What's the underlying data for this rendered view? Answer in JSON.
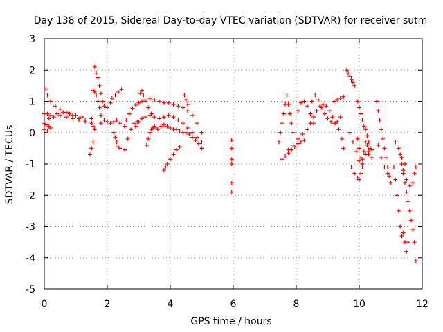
{
  "chart_data": {
    "type": "scatter",
    "title": "Day 138 of 2015, Sidereal Day-to-day VTEC variation (SDTVAR) for receiver sutm",
    "xlabel": "GPS time / hours",
    "ylabel": "SDTVAR / TECUs",
    "xlim": [
      0,
      12
    ],
    "ylim": [
      -5,
      3
    ],
    "xticks": [
      0,
      2,
      4,
      6,
      8,
      10,
      12
    ],
    "xtick_labels": [
      "0",
      "2",
      "4",
      "6",
      "8",
      "10",
      "12"
    ],
    "yticks": [
      -5,
      -4,
      -3,
      -2,
      -1,
      0,
      1,
      2,
      3
    ],
    "ytick_labels": [
      "-5",
      "-4",
      "-3",
      "-2",
      "-1",
      "0",
      "1",
      "2",
      "3"
    ],
    "grid": true,
    "marker": "+",
    "colors": {
      "series": "#ff0000",
      "grid": "#a0a0a0",
      "axes": "#000000"
    },
    "series": [
      {
        "name": "t1",
        "x": [
          0.0,
          0.15,
          0.3,
          0.5,
          0.7,
          0.9,
          1.1,
          1.3,
          1.5,
          1.55
        ],
        "y": [
          0.3,
          0.45,
          0.5,
          0.55,
          0.5,
          0.45,
          0.4,
          0.35,
          0.3,
          0.2
        ]
      },
      {
        "name": "t2",
        "x": [
          0.0,
          0.1,
          0.2,
          0.4,
          0.6,
          0.8,
          1.0,
          1.2
        ],
        "y": [
          0.6,
          0.6,
          0.55,
          0.6,
          0.65,
          0.6,
          0.55,
          0.5
        ]
      },
      {
        "name": "t3",
        "x": [
          0.05,
          0.1,
          0.2,
          0.35,
          0.5,
          0.7,
          0.9,
          1.1,
          1.3,
          1.5
        ],
        "y": [
          1.4,
          1.2,
          1.0,
          0.85,
          0.75,
          0.65,
          0.55,
          0.45,
          0.4,
          0.45
        ]
      },
      {
        "name": "t4",
        "x": [
          0.0,
          0.05,
          0.1,
          0.15,
          0.2
        ],
        "y": [
          0.1,
          0.25,
          0.05,
          0.2,
          0.15
        ]
      },
      {
        "name": "t5",
        "x": [
          1.45,
          1.5,
          1.55,
          1.6
        ],
        "y": [
          -0.7,
          -0.5,
          -0.3,
          0.1
        ]
      },
      {
        "name": "t6",
        "x": [
          1.6,
          1.65,
          1.7,
          1.75,
          1.8,
          1.85,
          1.9,
          2.0,
          2.1
        ],
        "y": [
          2.1,
          1.9,
          1.75,
          1.5,
          1.25,
          1.0,
          0.85,
          0.8,
          0.95
        ]
      },
      {
        "name": "t7",
        "x": [
          1.55,
          1.6,
          1.65,
          1.7,
          1.75,
          1.8
        ],
        "y": [
          1.35,
          1.3,
          1.2,
          1.0,
          0.8,
          0.55
        ]
      },
      {
        "name": "t8",
        "x": [
          1.8,
          1.9,
          2.0,
          2.1,
          2.2,
          2.3,
          2.4
        ],
        "y": [
          0.3,
          0.4,
          0.35,
          0.3,
          0.35,
          0.4,
          0.3
        ]
      },
      {
        "name": "t9",
        "x": [
          2.15,
          2.25,
          2.35,
          2.45
        ],
        "y": [
          1.1,
          1.2,
          1.3,
          1.38
        ]
      },
      {
        "name": "t10",
        "x": [
          2.2,
          2.25,
          2.3,
          2.35,
          2.4
        ],
        "y": [
          0.0,
          -0.15,
          -0.3,
          -0.45,
          -0.5
        ]
      },
      {
        "name": "t11",
        "x": [
          2.55,
          2.65,
          2.75,
          2.85,
          2.95
        ],
        "y": [
          -0.55,
          -0.2,
          0.1,
          0.3,
          0.35
        ]
      },
      {
        "name": "t12",
        "x": [
          2.55,
          2.6,
          2.7,
          2.8,
          2.9,
          3.0,
          3.1,
          3.2,
          3.35,
          3.5,
          3.65,
          3.8,
          3.95,
          4.1,
          4.25,
          4.4,
          4.55,
          4.7,
          4.85,
          5.0
        ],
        "y": [
          0.2,
          0.4,
          0.6,
          0.78,
          0.88,
          0.95,
          1.0,
          1.05,
          1.1,
          1.05,
          1.0,
          0.95,
          0.95,
          0.9,
          0.85,
          0.8,
          0.7,
          0.55,
          0.3,
          0.0
        ]
      },
      {
        "name": "t13",
        "x": [
          2.9,
          3.0,
          3.1,
          3.2,
          3.35,
          3.5,
          3.65,
          3.8,
          3.95,
          4.1,
          4.25,
          4.4,
          4.55,
          4.7,
          4.85,
          5.0
        ],
        "y": [
          0.2,
          0.35,
          0.45,
          0.5,
          0.55,
          0.5,
          0.45,
          0.5,
          0.55,
          0.5,
          0.4,
          0.3,
          0.15,
          0.0,
          -0.15,
          -0.3
        ]
      },
      {
        "name": "t14",
        "x": [
          3.05,
          3.1,
          3.15,
          3.2,
          3.3,
          3.4
        ],
        "y": [
          1.25,
          1.35,
          1.2,
          1.0,
          0.8,
          0.6
        ]
      },
      {
        "name": "t15",
        "x": [
          3.25,
          3.3,
          3.35,
          3.4,
          3.45,
          3.5,
          3.55,
          3.6,
          3.7,
          3.8,
          3.9,
          4.0,
          4.1,
          4.2,
          4.3,
          4.4,
          4.5,
          4.6,
          4.7,
          4.8,
          4.9,
          5.0
        ],
        "y": [
          -0.4,
          -0.2,
          0.0,
          0.1,
          0.15,
          0.2,
          0.15,
          0.1,
          0.2,
          0.25,
          0.2,
          0.15,
          0.1,
          0.1,
          0.05,
          0.0,
          0.0,
          -0.05,
          -0.15,
          -0.25,
          -0.35,
          -0.5
        ]
      },
      {
        "name": "t16",
        "x": [
          3.8,
          3.85,
          3.9,
          4.0,
          4.1,
          4.2,
          4.3
        ],
        "y": [
          -1.2,
          -1.1,
          -1.0,
          -0.85,
          -0.7,
          -0.55,
          -0.45
        ]
      },
      {
        "name": "t17",
        "x": [
          4.45,
          4.5,
          4.55
        ],
        "y": [
          1.2,
          1.05,
          0.9
        ]
      },
      {
        "name": "t18",
        "x": [
          5.95,
          5.95,
          5.95,
          5.95
        ],
        "y": [
          -0.25,
          -0.5,
          -0.85,
          -1.0
        ]
      },
      {
        "name": "t19",
        "x": [
          5.95,
          5.95
        ],
        "y": [
          -1.6,
          -1.9
        ]
      },
      {
        "name": "t20",
        "x": [
          7.55,
          7.65,
          7.75,
          7.85,
          7.95,
          8.05,
          8.15,
          8.25
        ],
        "y": [
          -0.85,
          -0.75,
          -0.65,
          -0.55,
          -0.45,
          -0.35,
          -0.3,
          -0.25
        ]
      },
      {
        "name": "t21",
        "x": [
          7.45,
          7.5,
          7.55,
          7.6,
          7.65,
          7.7,
          7.75,
          7.8,
          7.85,
          7.9
        ],
        "y": [
          -0.3,
          0.0,
          0.3,
          0.6,
          0.9,
          1.2,
          0.9,
          0.6,
          0.3,
          0.0
        ]
      },
      {
        "name": "t22",
        "x": [
          7.75,
          7.9,
          8.05,
          8.2,
          8.35,
          8.45,
          8.55,
          8.65,
          8.75,
          8.85,
          8.95,
          9.05,
          9.15,
          9.25,
          9.35,
          9.45,
          9.5
        ],
        "y": [
          -0.55,
          -0.4,
          -0.2,
          -0.05,
          0.1,
          0.3,
          0.5,
          0.7,
          0.85,
          0.9,
          0.85,
          0.7,
          0.5,
          0.3,
          0.1,
          -0.2,
          -0.5
        ]
      },
      {
        "name": "t23",
        "x": [
          8.05,
          8.15,
          8.25,
          8.35,
          8.45,
          8.55
        ],
        "y": [
          0.7,
          0.95,
          1.0,
          0.85,
          0.6,
          0.3
        ]
      },
      {
        "name": "t24",
        "x": [
          8.5,
          8.6,
          8.7,
          8.8,
          8.9,
          9.0,
          9.1,
          9.2,
          9.3,
          9.4
        ],
        "y": [
          1.0,
          1.2,
          1.05,
          0.8,
          0.6,
          0.45,
          0.35,
          0.3,
          0.35,
          0.5
        ]
      },
      {
        "name": "t25",
        "x": [
          9.2,
          9.3,
          9.4,
          9.5
        ],
        "y": [
          1.0,
          1.05,
          1.1,
          1.15
        ]
      },
      {
        "name": "t26",
        "x": [
          9.6,
          9.65,
          9.7,
          9.75,
          9.8,
          9.85
        ],
        "y": [
          2.0,
          1.9,
          1.8,
          1.7,
          1.6,
          1.5
        ]
      },
      {
        "name": "t27",
        "x": [
          9.7,
          9.8,
          9.9,
          10.0,
          10.1,
          10.2,
          10.3,
          10.4
        ],
        "y": [
          0.0,
          -0.3,
          -0.6,
          -0.9,
          -0.85,
          -0.7,
          -0.6,
          -0.8
        ]
      },
      {
        "name": "t28",
        "x": [
          9.75,
          9.85,
          9.95,
          10.0,
          10.05,
          10.1
        ],
        "y": [
          -1.1,
          -1.3,
          -1.45,
          -1.5,
          -1.3,
          -1.1
        ]
      },
      {
        "name": "t29",
        "x": [
          9.95,
          10.0,
          10.05,
          10.1,
          10.15,
          10.2,
          10.25,
          10.3,
          10.35,
          10.4
        ],
        "y": [
          1.0,
          0.8,
          0.6,
          0.4,
          0.2,
          0.1,
          -0.1,
          -0.3,
          -0.5,
          -0.55
        ]
      },
      {
        "name": "t30",
        "x": [
          9.95,
          10.0,
          10.05,
          10.1,
          10.15,
          10.2,
          10.25,
          10.3
        ],
        "y": [
          -0.2,
          -0.5,
          -0.8,
          -1.0,
          -0.6,
          -0.3,
          -0.4,
          -0.7
        ]
      },
      {
        "name": "t31",
        "x": [
          10.55,
          10.6,
          10.65,
          10.7,
          10.75,
          10.8,
          10.85,
          10.9,
          10.95
        ],
        "y": [
          1.0,
          0.7,
          0.4,
          0.1,
          -0.2,
          -0.5,
          -0.8,
          -1.1,
          -1.4
        ]
      },
      {
        "name": "t32",
        "x": [
          10.6,
          10.7,
          10.8,
          10.9,
          11.0
        ],
        "y": [
          -0.4,
          -0.8,
          -1.1,
          -1.3,
          -1.6
        ]
      },
      {
        "name": "t33",
        "x": [
          11.1,
          11.15,
          11.2,
          11.25,
          11.3,
          11.35,
          11.4,
          11.45,
          11.5,
          11.55
        ],
        "y": [
          -1.1,
          -1.5,
          -2.0,
          -2.5,
          -3.0,
          -3.3,
          -3.2,
          -3.5,
          -3.8,
          -3.5
        ]
      },
      {
        "name": "t34",
        "x": [
          11.3,
          11.35,
          11.4,
          11.45,
          11.5,
          11.55,
          11.6,
          11.65,
          11.7,
          11.75,
          11.8
        ],
        "y": [
          -0.7,
          -1.0,
          -1.3,
          -1.6,
          -1.9,
          -2.2,
          -2.5,
          -2.8,
          -3.1,
          -3.5,
          -4.1
        ]
      },
      {
        "name": "t35",
        "x": [
          11.4,
          11.5,
          11.6,
          11.7,
          11.75,
          11.8
        ],
        "y": [
          -1.2,
          -1.5,
          -1.7,
          -1.6,
          -1.3,
          -1.1
        ]
      },
      {
        "name": "t36",
        "x": [
          11.15,
          11.25,
          11.35,
          11.45
        ],
        "y": [
          -0.3,
          -0.5,
          -0.8,
          -1.0
        ]
      }
    ]
  }
}
